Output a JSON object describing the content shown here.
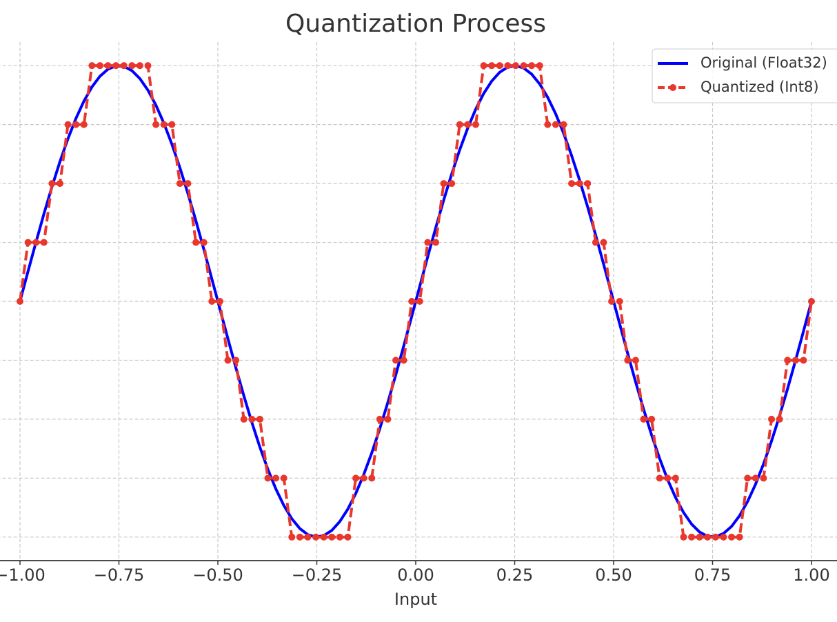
{
  "chart_data": {
    "type": "line",
    "title": "Quantization Process",
    "x_label": "Input",
    "x": [
      -1,
      -0.9798,
      -0.9596,
      -0.9394,
      -0.9192,
      -0.899,
      -0.8788,
      -0.8586,
      -0.8384,
      -0.8182,
      -0.798,
      -0.7778,
      -0.7576,
      -0.7374,
      -0.7172,
      -0.697,
      -0.6768,
      -0.6566,
      -0.6364,
      -0.6162,
      -0.596,
      -0.5758,
      -0.5556,
      -0.5354,
      -0.5152,
      -0.4949,
      -0.4747,
      -0.4545,
      -0.4343,
      -0.4141,
      -0.3939,
      -0.3737,
      -0.3535,
      -0.3333,
      -0.3131,
      -0.2929,
      -0.2727,
      -0.2525,
      -0.2323,
      -0.2121,
      -0.1919,
      -0.1717,
      -0.1515,
      -0.1313,
      -0.1111,
      -0.0909,
      -0.0707,
      -0.0505,
      -0.0303,
      -0.0101,
      0.0101,
      0.0303,
      0.0505,
      0.0707,
      0.0909,
      0.1111,
      0.1313,
      0.1515,
      0.1717,
      0.1919,
      0.2121,
      0.2323,
      0.2525,
      0.2727,
      0.2929,
      0.3131,
      0.3333,
      0.3535,
      0.3737,
      0.3939,
      0.4141,
      0.4343,
      0.4545,
      0.4747,
      0.4949,
      0.5152,
      0.5354,
      0.5556,
      0.5758,
      0.596,
      0.6162,
      0.6364,
      0.6566,
      0.6768,
      0.697,
      0.7172,
      0.7374,
      0.7576,
      0.7778,
      0.798,
      0.8182,
      0.8384,
      0.8586,
      0.8788,
      0.899,
      0.9192,
      0.9394,
      0.9596,
      0.9798,
      1
    ],
    "series": [
      {
        "name": "Original (Float32)",
        "color": "#0000ff",
        "dashed": false,
        "markers": false,
        "values": [
          0,
          0.1266,
          0.2511,
          0.3717,
          0.4862,
          0.5929,
          0.6901,
          0.7761,
          0.8497,
          0.9096,
          0.9549,
          0.9848,
          0.9989,
          0.9969,
          0.9788,
          0.945,
          0.896,
          0.8326,
          0.7558,
          0.6668,
          0.5671,
          0.4582,
          0.342,
          0.2203,
          0.0951,
          -0.0317,
          -0.158,
          -0.2817,
          -0.4009,
          -0.5137,
          -0.6182,
          -0.7127,
          -0.7958,
          -0.866,
          -0.9224,
          -0.9639,
          -0.9898,
          -0.9999,
          -0.9938,
          -0.9718,
          -0.9342,
          -0.8817,
          -0.815,
          -0.7346,
          -0.6428,
          -0.5406,
          -0.4298,
          -0.312,
          -0.1893,
          -0.0634,
          0.0634,
          0.1893,
          0.312,
          0.4298,
          0.5406,
          0.6428,
          0.7346,
          0.815,
          0.8817,
          0.9342,
          0.9718,
          0.9938,
          0.9999,
          0.9898,
          0.9639,
          0.9224,
          0.866,
          0.7958,
          0.7127,
          0.6182,
          0.5137,
          0.4009,
          0.2817,
          0.158,
          0.0317,
          -0.0951,
          -0.2203,
          -0.342,
          -0.4582,
          -0.5671,
          -0.6668,
          -0.7558,
          -0.8326,
          -0.896,
          -0.945,
          -0.9788,
          -0.9969,
          -0.9989,
          -0.9848,
          -0.9549,
          -0.9096,
          -0.8497,
          -0.7761,
          -0.6901,
          -0.5929,
          -0.4862,
          -0.3717,
          -0.2511,
          -0.1266,
          0
        ]
      },
      {
        "name": "Quantized (Int8)",
        "color": "#e8372c",
        "dashed": true,
        "markers": true,
        "values": [
          0,
          0.25,
          0.25,
          0.25,
          0.5,
          0.5,
          0.75,
          0.75,
          0.75,
          1,
          1,
          1,
          1,
          1,
          1,
          1,
          1,
          0.75,
          0.75,
          0.75,
          0.5,
          0.5,
          0.25,
          0.25,
          0,
          0,
          -0.25,
          -0.25,
          -0.5,
          -0.5,
          -0.5,
          -0.75,
          -0.75,
          -0.75,
          -1,
          -1,
          -1,
          -1,
          -1,
          -1,
          -1,
          -1,
          -0.75,
          -0.75,
          -0.75,
          -0.5,
          -0.5,
          -0.25,
          -0.25,
          0,
          0,
          0.25,
          0.25,
          0.5,
          0.5,
          0.75,
          0.75,
          0.75,
          1,
          1,
          1,
          1,
          1,
          1,
          1,
          1,
          0.75,
          0.75,
          0.75,
          0.5,
          0.5,
          0.5,
          0.25,
          0.25,
          0,
          0,
          -0.25,
          -0.25,
          -0.5,
          -0.5,
          -0.75,
          -0.75,
          -0.75,
          -1,
          -1,
          -1,
          -1,
          -1,
          -1,
          -1,
          -1,
          -0.75,
          -0.75,
          -0.75,
          -0.5,
          -0.5,
          -0.25,
          -0.25,
          -0.25,
          0
        ]
      }
    ],
    "xlim": [
      -1.1,
      1.1
    ],
    "ylim": [
      -1.1,
      1.1
    ],
    "xticks": [
      {
        "value": -1,
        "label": "−1.00"
      },
      {
        "value": -0.75,
        "label": "−0.75"
      },
      {
        "value": -0.5,
        "label": "−0.50"
      },
      {
        "value": -0.25,
        "label": "−0.25"
      },
      {
        "value": 0,
        "label": "0.00"
      },
      {
        "value": 0.25,
        "label": "0.25"
      },
      {
        "value": 0.5,
        "label": "0.50"
      },
      {
        "value": 0.75,
        "label": "0.75"
      },
      {
        "value": 1,
        "label": "1.00"
      }
    ],
    "yticks": [
      -1,
      -0.75,
      -0.5,
      -0.25,
      0,
      0.25,
      0.5,
      0.75,
      1
    ],
    "grid": true,
    "legend": "upper right"
  }
}
